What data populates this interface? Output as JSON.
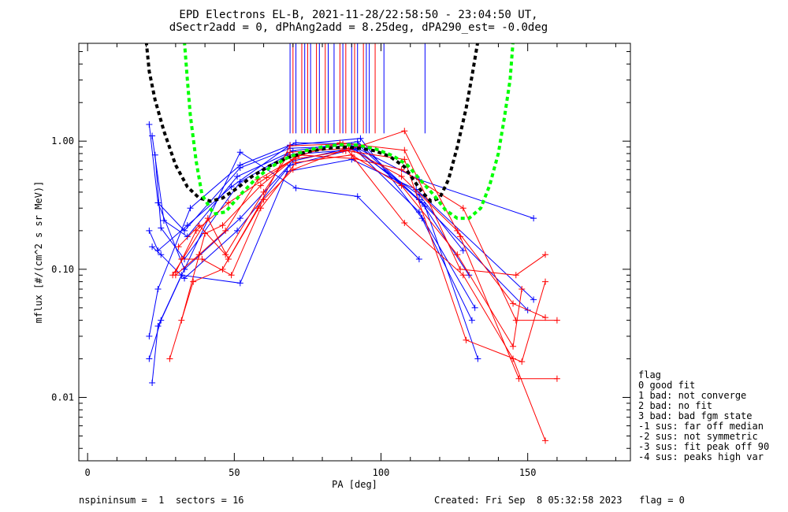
{
  "title_line1": "EPD Electrons EL-B, 2021-11-28/22:58:50 - 23:04:50 UT,",
  "title_line2": "dSectr2add = 0, dPhAng2add = 8.25deg, dPA290_est=  -0.0deg",
  "footer_left": "nspininsum =  1  sectors = 16",
  "footer_right": "Created: Fri Sep  8 05:32:58 2023   flag = 0",
  "flag_legend": {
    "title": "flag",
    "items": [
      " 0 good fit",
      " 1 bad: not converge",
      " 2 bad: no fit",
      " 3 bad: bad fgm state",
      "-1 sus: far off median",
      "-2 sus: not symmetric",
      "-3 sus: fit peak off 90",
      "-4 sus: peaks high var"
    ]
  },
  "colors": {
    "blue": "#0000ff",
    "red": "#ff0000",
    "black": "#000000",
    "green": "#00ff00"
  },
  "chart_data": {
    "type": "line",
    "title": "EPD Electrons EL-B, 2021-11-28/22:58:50 - 23:04:50 UT,",
    "xlabel": "PA [deg]",
    "ylabel": "mflux [#/(cm^2 s sr MeV)]",
    "xlim": [
      -3,
      185
    ],
    "ylim": [
      0.0032,
      5.8
    ],
    "yscale": "log",
    "xticks": [
      0,
      50,
      100,
      150
    ],
    "yticks": [
      0.01,
      0.1,
      1.0
    ],
    "ytick_labels": [
      "0.01",
      "0.10",
      "1.00"
    ],
    "series": [
      {
        "color": "blue",
        "points": [
          [
            21,
            1.35
          ],
          [
            24,
            0.33
          ],
          [
            33,
            0.2
          ],
          [
            52,
            0.62
          ],
          [
            69,
            0.88
          ],
          [
            90,
            0.92
          ],
          [
            113,
            0.28
          ],
          [
            132,
            0.05
          ]
        ]
      },
      {
        "color": "blue",
        "points": [
          [
            22,
            1.1
          ],
          [
            26,
            0.24
          ],
          [
            34,
            0.18
          ],
          [
            51,
            0.53
          ],
          [
            70,
            0.84
          ],
          [
            92,
            0.99
          ],
          [
            114,
            0.33
          ],
          [
            130,
            0.09
          ]
        ]
      },
      {
        "color": "blue",
        "points": [
          [
            23,
            0.78
          ],
          [
            25,
            0.21
          ],
          [
            33,
            0.12
          ],
          [
            52,
            0.48
          ],
          [
            68,
            0.78
          ],
          [
            91,
            0.86
          ],
          [
            113,
            0.38
          ],
          [
            128,
            0.14
          ]
        ]
      },
      {
        "color": "blue",
        "points": [
          [
            21,
            0.2
          ],
          [
            24,
            0.14
          ],
          [
            34,
            0.22
          ],
          [
            49,
            0.44
          ],
          [
            69,
            0.93
          ],
          [
            93,
            1.05
          ],
          [
            114,
            0.25
          ],
          [
            131,
            0.04
          ]
        ]
      },
      {
        "color": "blue",
        "points": [
          [
            21,
            0.03
          ],
          [
            24,
            0.07
          ],
          [
            35,
            0.3
          ],
          [
            52,
            0.65
          ],
          [
            71,
            0.97
          ],
          [
            92,
            0.95
          ],
          [
            115,
            0.31
          ],
          [
            133,
            0.02
          ]
        ]
      },
      {
        "color": "blue",
        "points": [
          [
            21,
            0.02
          ],
          [
            25,
            0.04
          ],
          [
            33,
            0.1
          ],
          [
            52,
            0.25
          ],
          [
            70,
            0.7
          ],
          [
            91,
            0.9
          ],
          [
            113,
            0.35
          ],
          [
            150,
            0.048
          ]
        ]
      },
      {
        "color": "blue",
        "points": [
          [
            22,
            0.013
          ],
          [
            24,
            0.036
          ],
          [
            32,
            0.09
          ],
          [
            52,
            0.078
          ],
          [
            68,
            0.58
          ],
          [
            90,
            0.72
          ],
          [
            112,
            0.42
          ],
          [
            152,
            0.058
          ]
        ]
      },
      {
        "color": "blue",
        "points": [
          [
            22,
            0.15
          ],
          [
            25,
            0.13
          ],
          [
            33,
            0.085
          ],
          [
            51,
            0.2
          ],
          [
            69,
            0.65
          ],
          [
            92,
            0.88
          ],
          [
            113,
            0.5
          ],
          [
            152,
            0.25
          ]
        ]
      },
      {
        "color": "blue",
        "points": [
          [
            24,
            0.33
          ],
          [
            33,
            0.1
          ],
          [
            52,
            0.82
          ],
          [
            71,
            0.43
          ],
          [
            92,
            0.37
          ],
          [
            113,
            0.12
          ]
        ]
      },
      {
        "color": "red",
        "points": [
          [
            28,
            0.02
          ],
          [
            36,
            0.08
          ],
          [
            46,
            0.1
          ],
          [
            58,
            0.3
          ],
          [
            69,
            0.92
          ],
          [
            87,
            0.95
          ],
          [
            108,
            0.23
          ],
          [
            128,
            0.09
          ],
          [
            145,
            0.02
          ],
          [
            156,
            0.0046
          ]
        ]
      },
      {
        "color": "red",
        "points": [
          [
            30,
            0.09
          ],
          [
            38,
            0.13
          ],
          [
            47,
            0.2
          ],
          [
            58,
            0.5
          ],
          [
            70,
            0.72
          ],
          [
            88,
            0.84
          ],
          [
            108,
            1.2
          ],
          [
            127,
            0.18
          ],
          [
            147,
            0.014
          ],
          [
            160,
            0.014
          ]
        ]
      },
      {
        "color": "red",
        "points": [
          [
            31,
            0.15
          ],
          [
            38,
            0.22
          ],
          [
            47,
            0.13
          ],
          [
            60,
            0.4
          ],
          [
            69,
            0.82
          ],
          [
            89,
            0.88
          ],
          [
            107,
            0.53
          ],
          [
            126,
            0.2
          ],
          [
            145,
            0.054
          ],
          [
            156,
            0.042
          ]
        ]
      },
      {
        "color": "red",
        "points": [
          [
            32,
            0.04
          ],
          [
            40,
            0.19
          ],
          [
            46,
            0.22
          ],
          [
            59,
            0.45
          ],
          [
            71,
            0.75
          ],
          [
            86,
            0.97
          ],
          [
            108,
            0.85
          ],
          [
            127,
            0.1
          ],
          [
            146,
            0.09
          ],
          [
            156,
            0.13
          ]
        ]
      },
      {
        "color": "red",
        "points": [
          [
            30,
            0.095
          ],
          [
            37,
            0.2
          ],
          [
            48,
            0.33
          ],
          [
            61,
            0.52
          ],
          [
            72,
            0.78
          ],
          [
            91,
            0.73
          ],
          [
            107,
            0.6
          ],
          [
            128,
            0.3
          ],
          [
            146,
            0.04
          ],
          [
            160,
            0.04
          ]
        ]
      },
      {
        "color": "red",
        "points": [
          [
            32,
            0.12
          ],
          [
            39,
            0.12
          ],
          [
            49,
            0.09
          ],
          [
            59,
            0.3
          ],
          [
            71,
            0.68
          ],
          [
            90,
            0.78
          ],
          [
            107,
            0.45
          ],
          [
            126,
            0.13
          ],
          [
            145,
            0.025
          ],
          [
            148,
            0.07
          ]
        ]
      },
      {
        "color": "red",
        "points": [
          [
            29,
            0.09
          ],
          [
            41,
            0.25
          ],
          [
            48,
            0.12
          ],
          [
            60,
            0.35
          ],
          [
            70,
            0.6
          ],
          [
            87,
            0.85
          ],
          [
            108,
            0.72
          ],
          [
            129,
            0.028
          ],
          [
            148,
            0.019
          ],
          [
            156,
            0.08
          ]
        ]
      }
    ],
    "fit_curves": [
      {
        "color": "black",
        "style": "dashed",
        "points": [
          [
            20,
            6.0
          ],
          [
            21,
            3.5
          ],
          [
            23,
            2.1
          ],
          [
            26,
            1.2
          ],
          [
            30,
            0.65
          ],
          [
            34,
            0.44
          ],
          [
            38,
            0.36
          ],
          [
            42,
            0.34
          ],
          [
            46,
            0.36
          ],
          [
            51,
            0.43
          ],
          [
            56,
            0.53
          ],
          [
            62,
            0.64
          ],
          [
            68,
            0.74
          ],
          [
            75,
            0.83
          ],
          [
            82,
            0.88
          ],
          [
            88,
            0.9
          ],
          [
            93,
            0.88
          ],
          [
            98,
            0.84
          ],
          [
            103,
            0.76
          ],
          [
            108,
            0.63
          ],
          [
            111,
            0.5
          ],
          [
            114,
            0.4
          ],
          [
            117,
            0.34
          ],
          [
            120,
            0.36
          ],
          [
            123,
            0.5
          ],
          [
            126,
            0.9
          ],
          [
            129,
            1.8
          ],
          [
            131,
            3.2
          ],
          [
            133,
            6.0
          ]
        ]
      },
      {
        "color": "green",
        "style": "dashed",
        "points": [
          [
            33,
            6.0
          ],
          [
            34,
            3.0
          ],
          [
            35,
            1.6
          ],
          [
            37,
            0.7
          ],
          [
            39,
            0.38
          ],
          [
            43,
            0.27
          ],
          [
            47,
            0.28
          ],
          [
            52,
            0.38
          ],
          [
            57,
            0.5
          ],
          [
            62,
            0.62
          ],
          [
            68,
            0.74
          ],
          [
            74,
            0.84
          ],
          [
            80,
            0.9
          ],
          [
            86,
            0.94
          ],
          [
            92,
            0.93
          ],
          [
            98,
            0.87
          ],
          [
            104,
            0.77
          ],
          [
            109,
            0.65
          ],
          [
            114,
            0.48
          ],
          [
            118,
            0.38
          ],
          [
            122,
            0.29
          ],
          [
            126,
            0.25
          ],
          [
            130,
            0.25
          ],
          [
            134,
            0.3
          ],
          [
            137,
            0.45
          ],
          [
            140,
            0.8
          ],
          [
            142,
            1.5
          ],
          [
            144,
            3.0
          ],
          [
            145,
            6.0
          ]
        ]
      }
    ],
    "vlines": [
      {
        "color": "blue",
        "x": 69
      },
      {
        "color": "red",
        "x": 70
      },
      {
        "color": "blue",
        "x": 71
      },
      {
        "color": "red",
        "x": 73
      },
      {
        "color": "blue",
        "x": 74
      },
      {
        "color": "red",
        "x": 75
      },
      {
        "color": "blue",
        "x": 76
      },
      {
        "color": "red",
        "x": 78
      },
      {
        "color": "blue",
        "x": 79
      },
      {
        "color": "red",
        "x": 81
      },
      {
        "color": "blue",
        "x": 82
      },
      {
        "color": "blue",
        "x": 84
      },
      {
        "color": "red",
        "x": 86
      },
      {
        "color": "blue",
        "x": 87
      },
      {
        "color": "red",
        "x": 88
      },
      {
        "color": "blue",
        "x": 90
      },
      {
        "color": "red",
        "x": 91
      },
      {
        "color": "blue",
        "x": 92
      },
      {
        "color": "red",
        "x": 94
      },
      {
        "color": "blue",
        "x": 95
      },
      {
        "color": "blue",
        "x": 96
      },
      {
        "color": "red",
        "x": 98
      },
      {
        "color": "blue",
        "x": 101
      },
      {
        "color": "blue",
        "x": 115
      }
    ],
    "vline_range": [
      1.15,
      5.8
    ]
  }
}
